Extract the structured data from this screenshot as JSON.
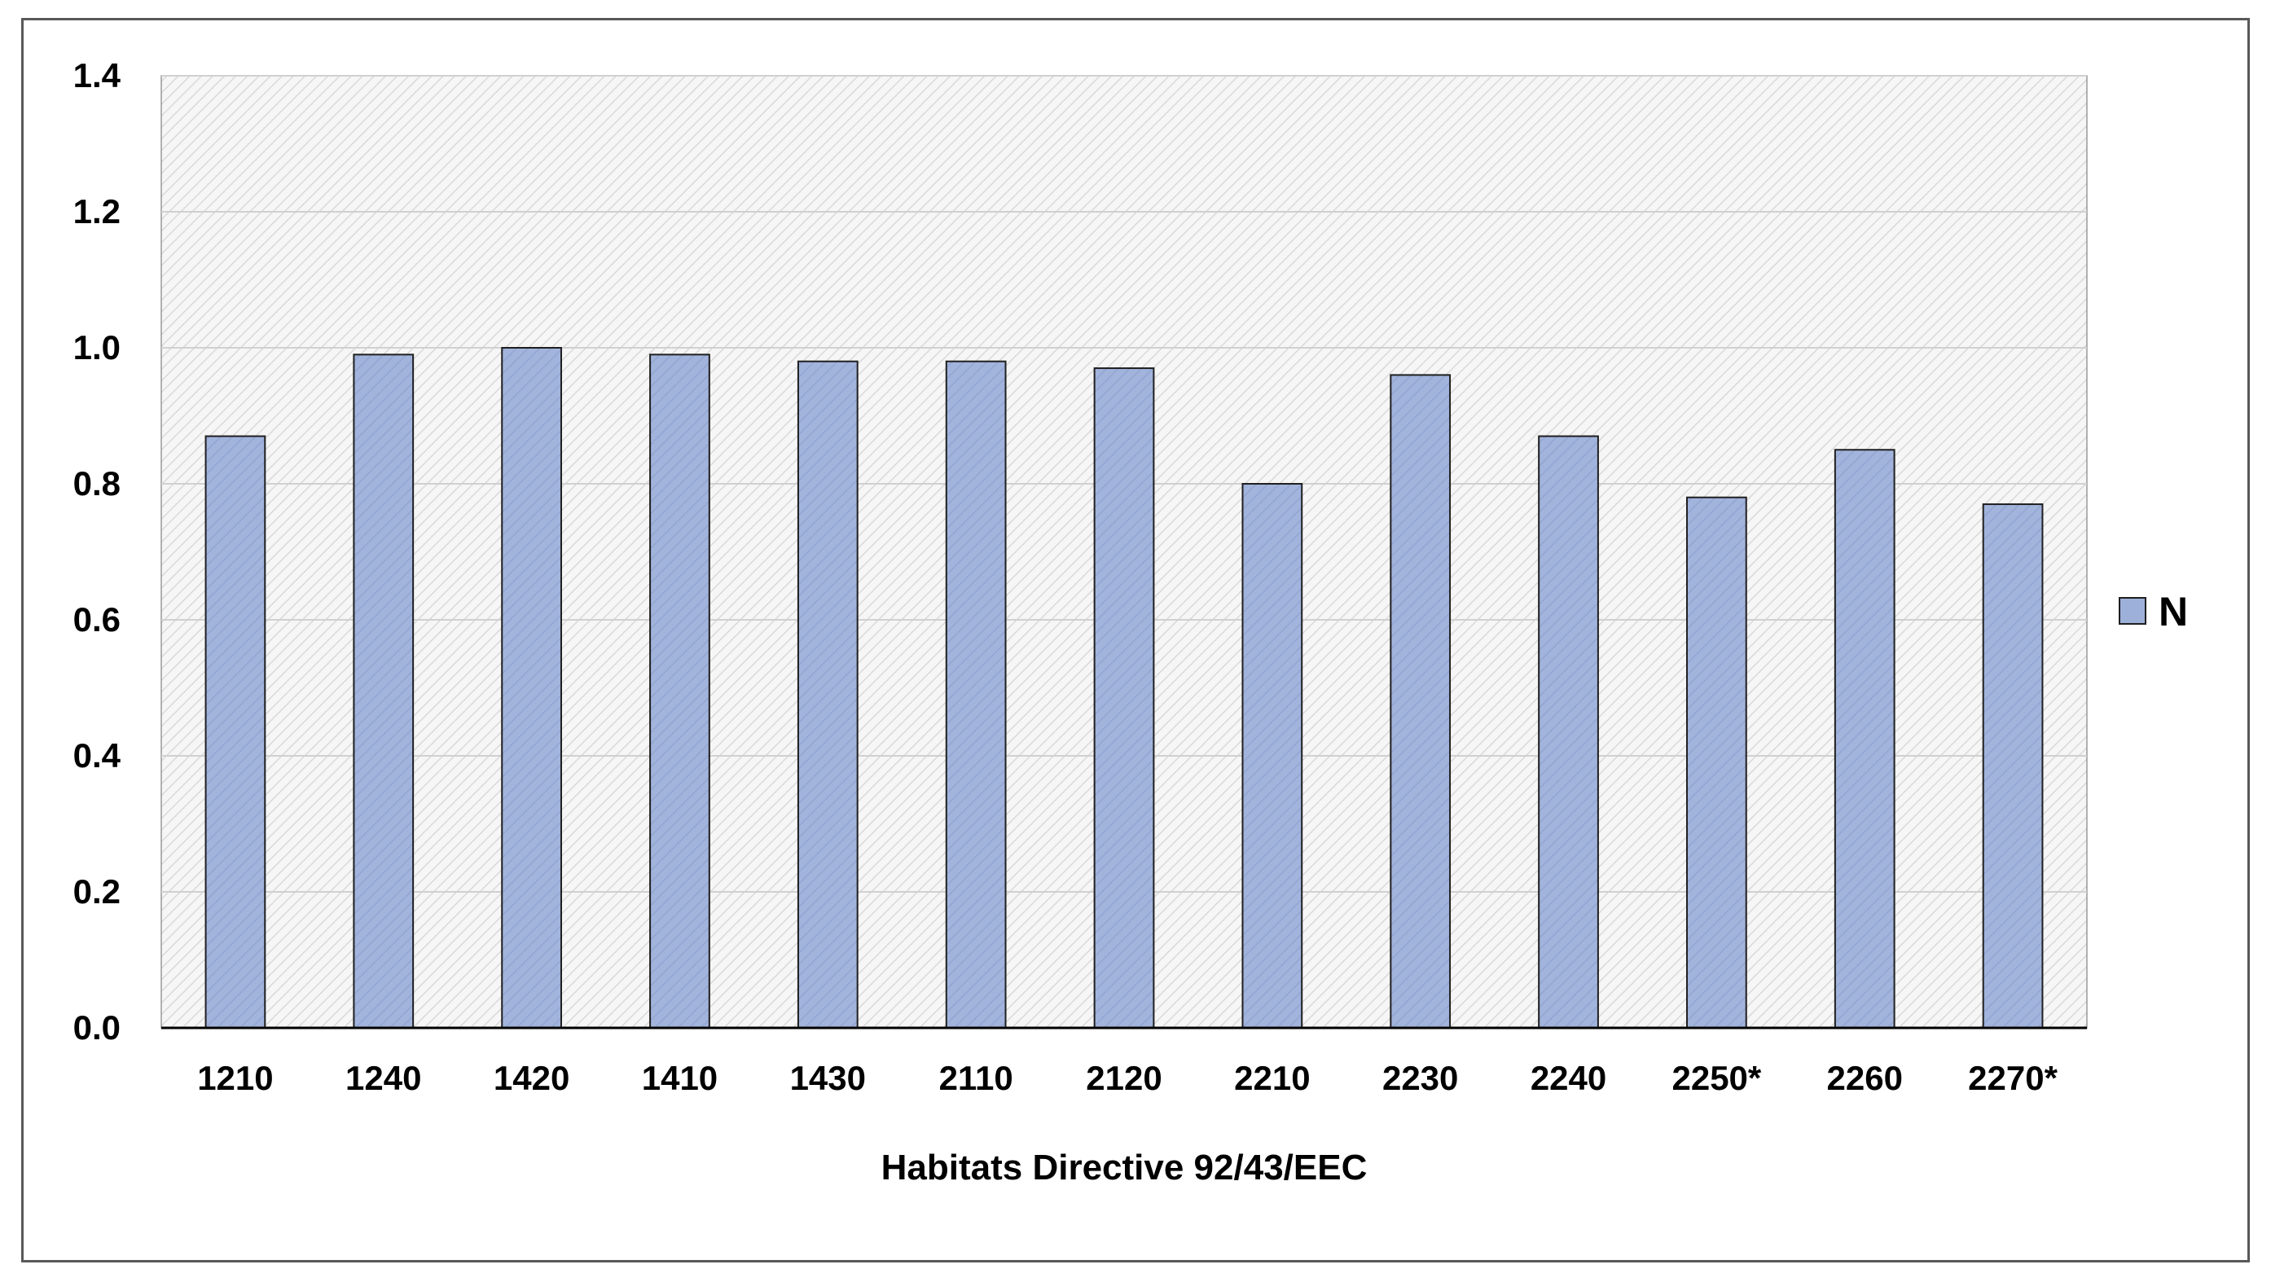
{
  "chart_data": {
    "type": "bar",
    "categories": [
      "1210",
      "1240",
      "1420",
      "1410",
      "1430",
      "2110",
      "2120",
      "2210",
      "2230",
      "2240",
      "2250*",
      "2260",
      "2270*"
    ],
    "series": [
      {
        "name": "N",
        "values": [
          0.87,
          0.99,
          1.0,
          0.99,
          0.98,
          0.98,
          0.97,
          0.8,
          0.96,
          0.87,
          0.78,
          0.85,
          0.77
        ]
      }
    ],
    "xlabel": "Habitats Directive 92/43/EEC",
    "ylabel": "",
    "ylim": [
      0,
      1.4
    ],
    "yticks": [
      0.0,
      0.2,
      0.4,
      0.6,
      0.8,
      1.0,
      1.2,
      1.4
    ],
    "ytick_labels": [
      "0.0",
      "0.2",
      "0.4",
      "0.6",
      "0.8",
      "1.0",
      "1.2",
      "1.4"
    ],
    "grid": true,
    "legend_position": "right",
    "colors": {
      "bar_fill": "#9DB0D9",
      "bar_stroke": "#1f1f1f",
      "plot_background": "#f4f4f4",
      "hatch": "#d9d9d9",
      "gridline": "#d0d0d0"
    }
  }
}
